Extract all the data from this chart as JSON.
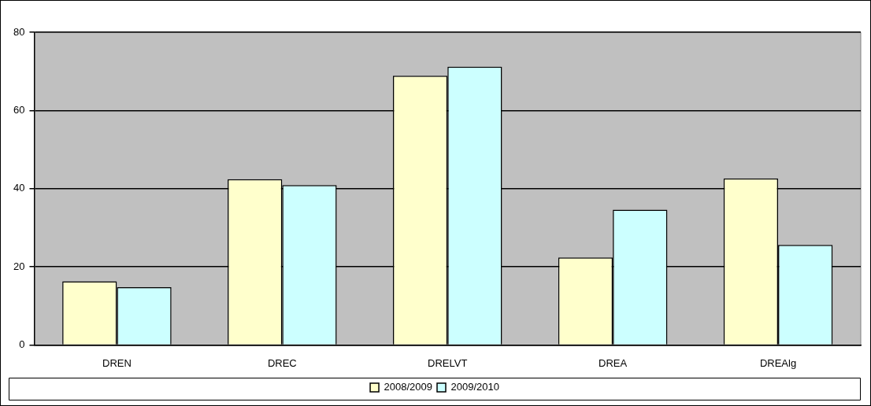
{
  "chart_data": {
    "type": "bar",
    "categories": [
      "DREN",
      "DREC",
      "DRELVT",
      "DREA",
      "DREAlg"
    ],
    "series": [
      {
        "name": "2008/2009",
        "color": "#ffffcc",
        "values": [
          16.3,
          42.4,
          68.9,
          22.4,
          42.6
        ]
      },
      {
        "name": "2009/2010",
        "color": "#ccffff",
        "values": [
          14.8,
          40.9,
          71.2,
          34.6,
          25.6
        ]
      }
    ],
    "ylim": [
      0,
      80
    ],
    "yticks": [
      0,
      20,
      40,
      60,
      80
    ],
    "grid": "y",
    "legend": "bottom"
  }
}
